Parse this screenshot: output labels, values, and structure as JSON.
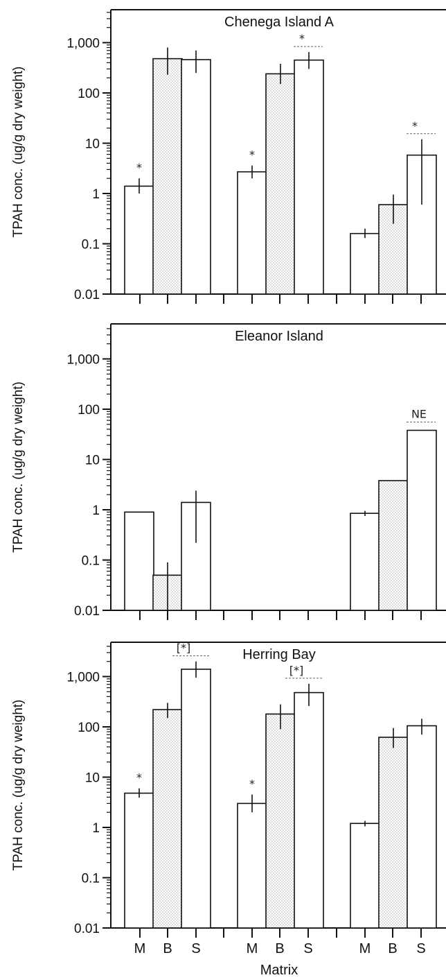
{
  "figure": {
    "xlabel": "Matrix",
    "colors": {
      "ink": "#111111",
      "bar_fill_plain": "#ffffff",
      "bar_fill_stippled": "#e6e6e6",
      "dash": "#666666"
    }
  },
  "chart_data": [
    {
      "type": "bar",
      "title": "Chenega Island A",
      "ylabel": "TPAH conc. (ug/g dry weight)",
      "yscale": "log",
      "ylim": [
        0.01,
        5000
      ],
      "yticks": [
        "0.01",
        "0.1",
        "1",
        "10",
        "100",
        "1,000"
      ],
      "groups": [
        {
          "categories": [
            "M",
            "B",
            "S"
          ],
          "values": [
            1.4,
            480,
            460
          ],
          "err_low": [
            1.0,
            230,
            250
          ],
          "err_high": [
            2.0,
            800,
            700
          ],
          "stippled": [
            false,
            true,
            false
          ]
        },
        {
          "categories": [
            "M",
            "B",
            "S"
          ],
          "values": [
            2.7,
            240,
            450
          ],
          "err_low": [
            2.0,
            150,
            300
          ],
          "err_high": [
            3.6,
            380,
            650
          ],
          "stippled": [
            false,
            true,
            false
          ]
        },
        {
          "categories": [
            "M",
            "B",
            "S"
          ],
          "values": [
            0.16,
            0.6,
            5.8
          ],
          "err_low": [
            0.13,
            0.25,
            0.6
          ],
          "err_high": [
            0.2,
            0.95,
            12
          ],
          "stippled": [
            false,
            true,
            false
          ]
        }
      ],
      "annotations": [
        {
          "text": "*",
          "group": 0,
          "bar": 0,
          "style": "star"
        },
        {
          "text": "*",
          "group": 1,
          "bar": 0,
          "style": "star"
        },
        {
          "text": "*",
          "group": 1,
          "bar": 2,
          "style": "star-dashed"
        },
        {
          "text": "*",
          "group": 2,
          "bar": 2,
          "style": "star-dashed"
        }
      ]
    },
    {
      "type": "bar",
      "title": "Eleanor Island",
      "ylabel": "TPAH conc. (ug/g dry weight)",
      "yscale": "log",
      "ylim": [
        0.01,
        5000
      ],
      "yticks": [
        "0.01",
        "0.1",
        "1",
        "10",
        "100",
        "1,000"
      ],
      "groups": [
        {
          "categories": [
            "M",
            "B",
            "S"
          ],
          "values": [
            0.9,
            0.05,
            1.4
          ],
          "err_low": [
            null,
            0.01,
            0.22
          ],
          "err_high": [
            null,
            0.09,
            2.4
          ],
          "stippled": [
            false,
            true,
            false
          ]
        },
        {
          "categories": [
            "M",
            "B",
            "S"
          ],
          "values": [
            null,
            null,
            null
          ],
          "err_low": [
            null,
            null,
            null
          ],
          "err_high": [
            null,
            null,
            null
          ],
          "stippled": [
            false,
            true,
            false
          ]
        },
        {
          "categories": [
            "M",
            "B",
            "S"
          ],
          "values": [
            0.85,
            3.8,
            38
          ],
          "err_low": [
            0.75,
            null,
            null
          ],
          "err_high": [
            0.95,
            null,
            null
          ],
          "stippled": [
            false,
            true,
            false
          ]
        }
      ],
      "annotations": [
        {
          "text": "NE",
          "group": 2,
          "bar": 2,
          "style": "label-dashed"
        }
      ]
    },
    {
      "type": "bar",
      "title": "Herring Bay",
      "ylabel": "TPAH conc. (ug/g dry weight)",
      "yscale": "log",
      "ylim": [
        0.01,
        5000
      ],
      "yticks": [
        "0.01",
        "0.1",
        "1",
        "10",
        "100",
        "1,000"
      ],
      "groups": [
        {
          "categories": [
            "M",
            "B",
            "S"
          ],
          "values": [
            4.8,
            220,
            1400
          ],
          "err_low": [
            3.9,
            150,
            950
          ],
          "err_high": [
            6.0,
            300,
            2000
          ],
          "stippled": [
            false,
            true,
            false
          ]
        },
        {
          "categories": [
            "M",
            "B",
            "S"
          ],
          "values": [
            3.0,
            180,
            480
          ],
          "err_low": [
            2.0,
            90,
            260
          ],
          "err_high": [
            4.5,
            280,
            720
          ],
          "stippled": [
            false,
            true,
            false
          ]
        },
        {
          "categories": [
            "M",
            "B",
            "S"
          ],
          "values": [
            1.2,
            62,
            105
          ],
          "err_low": [
            1.05,
            38,
            70
          ],
          "err_high": [
            1.35,
            95,
            145
          ],
          "stippled": [
            false,
            true,
            false
          ]
        }
      ],
      "annotations": [
        {
          "text": "*",
          "group": 0,
          "bar": 0,
          "style": "star"
        },
        {
          "text": "*",
          "group": 1,
          "bar": 0,
          "style": "star"
        },
        {
          "text": "[*]",
          "group": 0,
          "bar": 2,
          "style": "bracket-dashed"
        },
        {
          "text": "[*]",
          "group": 1,
          "bar": 2,
          "style": "bracket-dashed"
        }
      ],
      "show_category_labels": true
    }
  ]
}
